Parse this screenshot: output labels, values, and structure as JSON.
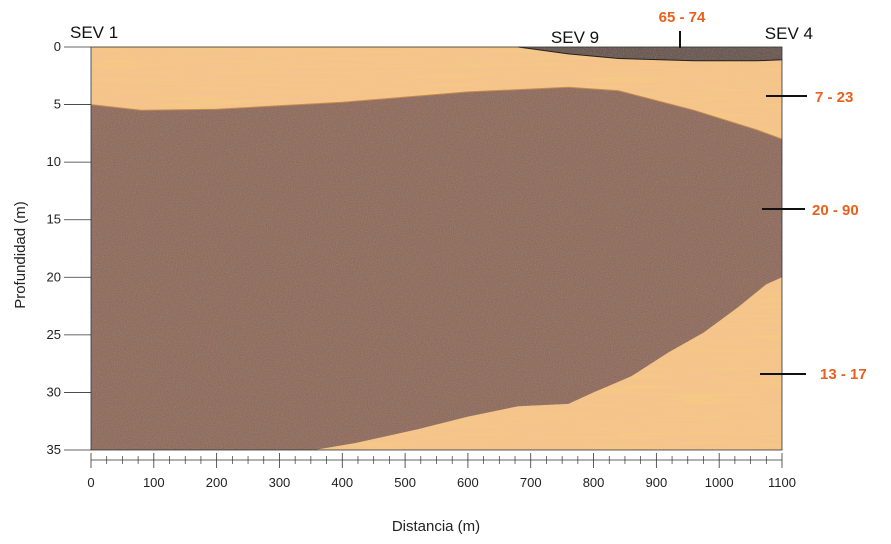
{
  "section": {
    "x_axis": {
      "label": "Distancia (m)",
      "ticks": [
        "0",
        "100",
        "200",
        "300",
        "400",
        "500",
        "600",
        "700",
        "800",
        "900",
        "1000",
        "1100"
      ],
      "range": [
        0,
        1100
      ]
    },
    "y_axis": {
      "label": "Profundidad (m)",
      "ticks": [
        "0",
        "5",
        "10",
        "15",
        "20",
        "25",
        "30",
        "35"
      ],
      "range": [
        0,
        35
      ]
    },
    "soundings": [
      {
        "label": "SEV 1",
        "distance": 0
      },
      {
        "label": "SEV 9",
        "distance": 740
      },
      {
        "label": "SEV 4",
        "distance": 1100
      }
    ],
    "resistivity_labels": [
      {
        "text": "65 - 74",
        "layer": "top-gravel"
      },
      {
        "text": "7 - 23",
        "layer": "upper-sand"
      },
      {
        "text": "20 - 90",
        "layer": "middle-clay"
      },
      {
        "text": "13 - 17",
        "layer": "lower-sand"
      }
    ],
    "layers": {
      "top_gravel_bottom": [
        [
          680,
          0
        ],
        [
          760,
          0.6
        ],
        [
          840,
          1.0
        ],
        [
          960,
          1.2
        ],
        [
          1060,
          1.2
        ],
        [
          1100,
          1.1
        ]
      ],
      "sand_clay_boundary": [
        [
          0,
          5.0
        ],
        [
          80,
          5.5
        ],
        [
          200,
          5.4
        ],
        [
          400,
          4.8
        ],
        [
          600,
          3.9
        ],
        [
          760,
          3.5
        ],
        [
          840,
          3.8
        ],
        [
          960,
          5.5
        ],
        [
          1060,
          7.2
        ],
        [
          1100,
          8.0
        ]
      ],
      "clay_lower_boundary": [
        [
          355,
          35
        ],
        [
          420,
          34.4
        ],
        [
          520,
          33.2
        ],
        [
          600,
          32.1
        ],
        [
          680,
          31.2
        ],
        [
          760,
          31.0
        ],
        [
          800,
          30.0
        ],
        [
          860,
          28.6
        ],
        [
          920,
          26.5
        ],
        [
          975,
          24.8
        ],
        [
          1030,
          22.6
        ],
        [
          1075,
          20.6
        ],
        [
          1100,
          20.0
        ]
      ]
    },
    "colors": {
      "sand": "#f4c48c",
      "sand_streak": "#e8953e",
      "clay": "#8f6a5c",
      "gravel": "#6c5a52",
      "resistivity_text": "#e8601c"
    }
  }
}
